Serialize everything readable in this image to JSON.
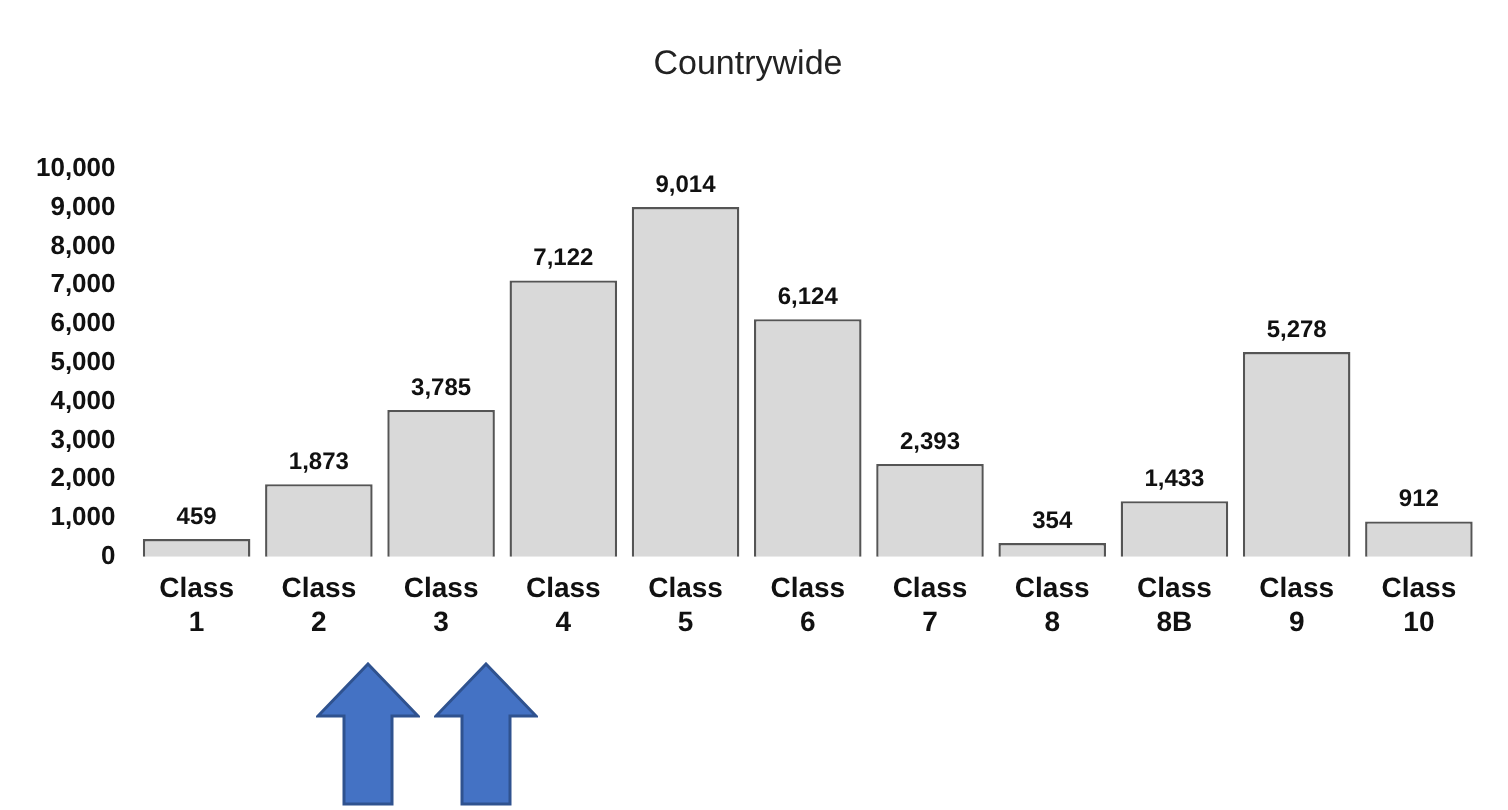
{
  "chart_data": {
    "type": "bar",
    "title": "Countrywide",
    "categories": [
      "Class 1",
      "Class 2",
      "Class 3",
      "Class 4",
      "Class 5",
      "Class 6",
      "Class 7",
      "Class 8",
      "Class 8B",
      "Class 9",
      "Class 10"
    ],
    "values": [
      459,
      1873,
      3785,
      7122,
      9014,
      6124,
      2393,
      354,
      1433,
      5278,
      912
    ],
    "color": "#d9d9d9",
    "ylim": [
      0,
      10000
    ],
    "yticks": [
      0,
      {
        "value": 1000,
        "label": "1,000"
      },
      {
        "value": 2000,
        "label": "2,000"
      },
      {
        "value": 3000,
        "label": "3,000"
      },
      {
        "value": 4000,
        "label": "4,000"
      },
      {
        "value": 5000,
        "label": "5,000"
      },
      {
        "value": 6000,
        "label": "6,000"
      },
      {
        "value": 7000,
        "label": "7,000"
      },
      {
        "value": 8000,
        "label": "8,000"
      },
      {
        "value": 9000,
        "label": "9,000"
      },
      {
        "value": 10000,
        "label": "10,000"
      }
    ],
    "value_labels": [
      "459",
      "1,873",
      "3,785",
      "7,122",
      "9,014",
      "6,124",
      "2,393",
      "354",
      "1,433",
      "5,278",
      "912"
    ],
    "grid": false,
    "legend": false
  }
}
